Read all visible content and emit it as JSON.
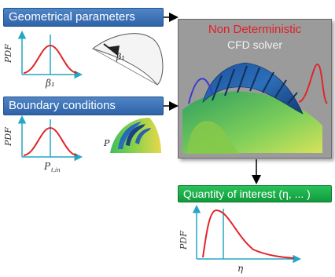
{
  "geometrical": {
    "header": "Geometrical parameters",
    "pdf_axis_label": "PDF",
    "param_label": "β₁",
    "blade_param_label": "β₁"
  },
  "boundary": {
    "header": "Boundary conditions",
    "pdf_axis_label": "PDF",
    "param_label": "P",
    "param_subscript": "t,in",
    "cut_label": "P"
  },
  "solver": {
    "title": "Non Deterministic",
    "subtitle": "CFD solver"
  },
  "qoi": {
    "header": "Quantity of interest (η, ... )",
    "pdf_axis_label": "PDF",
    "axis_label": "η"
  },
  "colors": {
    "blue_header": "#3a70b5",
    "green_header": "#1aa84a",
    "solver_bg": "#9b9b9b",
    "title_red": "#e31e24",
    "curve_red": "#e0262b",
    "axis_teal": "#22a7c4"
  }
}
